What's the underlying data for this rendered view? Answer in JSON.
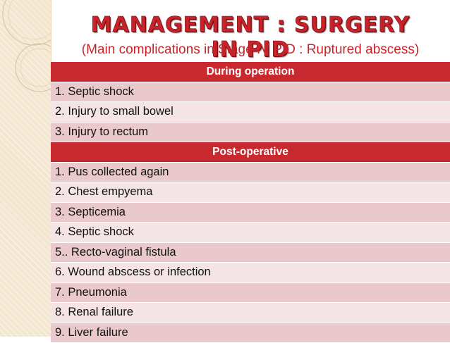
{
  "slide": {
    "title": "Management : Surgery in PID",
    "subtitle": "(Main complications in Stage IV PID : Ruptured abscess)"
  },
  "sections": [
    {
      "heading": "During operation",
      "items": [
        "1. Septic shock",
        "2. Injury to small bowel",
        "3. Injury to rectum"
      ]
    },
    {
      "heading": "Post-operative",
      "items": [
        "1. Pus collected again",
        "2. Chest empyema",
        "3. Septicemia",
        "4. Septic shock",
        "5.. Recto-vaginal fistula",
        "6.  Wound abscess or infection",
        "7. Pneumonia",
        "8. Renal failure",
        "9. Liver failure"
      ]
    }
  ],
  "colors": {
    "accent": "#c8232a",
    "header_row": "#c8292f",
    "row_dark": "#e9c9cb",
    "row_light": "#f4e4e5",
    "side_band": "#f2e6cf"
  }
}
